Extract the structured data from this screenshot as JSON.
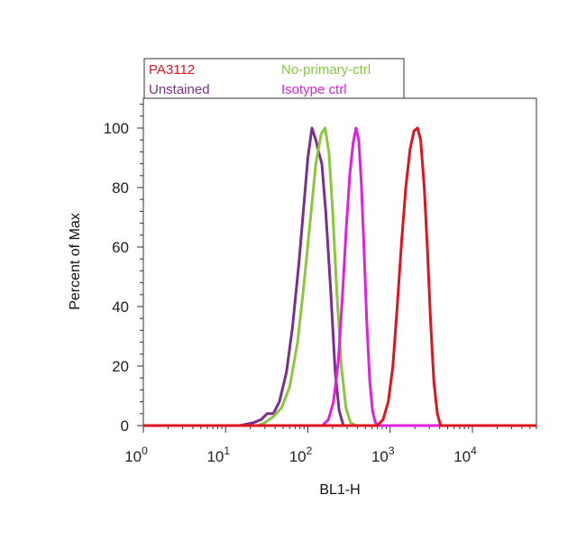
{
  "chart_data": {
    "type": "line",
    "title": "",
    "xlabel": "BL1-H",
    "ylabel": "Percent of Max",
    "x_scale": "log",
    "xlim": [
      1,
      60000
    ],
    "ylim": [
      0,
      110
    ],
    "grid": false,
    "legend_position": "top-left",
    "x_ticks": [
      {
        "value": 1,
        "base": "10",
        "exp": "0"
      },
      {
        "value": 10,
        "base": "10",
        "exp": "1"
      },
      {
        "value": 100,
        "base": "10",
        "exp": "2"
      },
      {
        "value": 1000,
        "base": "10",
        "exp": "3"
      },
      {
        "value": 10000,
        "base": "10",
        "exp": "4"
      }
    ],
    "y_ticks": [
      {
        "value": 0,
        "label": "0"
      },
      {
        "value": 20,
        "label": "20"
      },
      {
        "value": 40,
        "label": "40"
      },
      {
        "value": 60,
        "label": "60"
      },
      {
        "value": 80,
        "label": "80"
      },
      {
        "value": 100,
        "label": "100"
      }
    ],
    "series": [
      {
        "name": "Unstained",
        "color": "#7b2f8c",
        "points": [
          [
            1,
            0
          ],
          [
            15,
            0
          ],
          [
            22,
            1
          ],
          [
            27,
            2
          ],
          [
            32,
            4
          ],
          [
            38,
            4
          ],
          [
            45,
            8
          ],
          [
            55,
            18
          ],
          [
            65,
            33
          ],
          [
            78,
            55
          ],
          [
            90,
            75
          ],
          [
            100,
            90
          ],
          [
            112,
            100
          ],
          [
            125,
            96
          ],
          [
            135,
            92
          ],
          [
            148,
            88
          ],
          [
            165,
            72
          ],
          [
            190,
            45
          ],
          [
            215,
            18
          ],
          [
            240,
            5
          ],
          [
            270,
            0
          ],
          [
            60000,
            0
          ]
        ]
      },
      {
        "name": "No-primary-ctrl",
        "color": "#8cc63f",
        "points": [
          [
            1,
            0
          ],
          [
            25,
            0
          ],
          [
            30,
            1
          ],
          [
            38,
            3
          ],
          [
            48,
            6
          ],
          [
            60,
            13
          ],
          [
            75,
            28
          ],
          [
            90,
            48
          ],
          [
            108,
            70
          ],
          [
            125,
            88
          ],
          [
            145,
            98
          ],
          [
            162,
            100
          ],
          [
            180,
            92
          ],
          [
            200,
            72
          ],
          [
            225,
            45
          ],
          [
            255,
            20
          ],
          [
            290,
            6
          ],
          [
            330,
            1
          ],
          [
            380,
            0
          ],
          [
            60000,
            0
          ]
        ]
      },
      {
        "name": "Isotype ctrl",
        "color": "#e020e0",
        "points": [
          [
            1,
            0
          ],
          [
            150,
            0
          ],
          [
            178,
            2
          ],
          [
            205,
            8
          ],
          [
            235,
            22
          ],
          [
            265,
            45
          ],
          [
            295,
            68
          ],
          [
            325,
            85
          ],
          [
            355,
            95
          ],
          [
            385,
            100
          ],
          [
            415,
            96
          ],
          [
            445,
            82
          ],
          [
            480,
            60
          ],
          [
            520,
            35
          ],
          [
            565,
            15
          ],
          [
            610,
            5
          ],
          [
            660,
            1
          ],
          [
            720,
            0
          ],
          [
            60000,
            0
          ]
        ]
      },
      {
        "name": "PA3112",
        "color": "#e0141e",
        "points": [
          [
            1,
            0
          ],
          [
            700,
            0
          ],
          [
            820,
            2
          ],
          [
            950,
            8
          ],
          [
            1080,
            20
          ],
          [
            1220,
            40
          ],
          [
            1380,
            62
          ],
          [
            1550,
            80
          ],
          [
            1750,
            93
          ],
          [
            1950,
            99
          ],
          [
            2150,
            100
          ],
          [
            2350,
            96
          ],
          [
            2600,
            80
          ],
          [
            2850,
            58
          ],
          [
            3100,
            35
          ],
          [
            3400,
            15
          ],
          [
            3750,
            4
          ],
          [
            4100,
            0
          ],
          [
            60000,
            0
          ]
        ]
      }
    ],
    "legend": [
      {
        "label": "PA3112",
        "color": "#e0141e"
      },
      {
        "label": "No-primary-ctrl",
        "color": "#8cc63f"
      },
      {
        "label": "Unstained",
        "color": "#7b2f8c"
      },
      {
        "label": "Isotype ctrl",
        "color": "#e020e0"
      }
    ]
  }
}
